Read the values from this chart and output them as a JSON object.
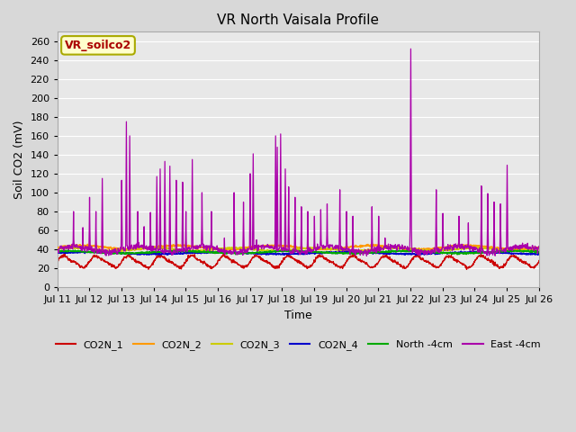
{
  "title": "VR North Vaisala Profile",
  "xlabel": "Time",
  "ylabel": "Soil CO2 (mV)",
  "ylim": [
    0,
    270
  ],
  "yticks": [
    0,
    20,
    40,
    60,
    80,
    100,
    120,
    140,
    160,
    180,
    200,
    220,
    240,
    260
  ],
  "xtick_labels": [
    "Jul 11",
    "Jul 12",
    "Jul 13",
    "Jul 14",
    "Jul 15",
    "Jul 16",
    "Jul 17",
    "Jul 18",
    "Jul 19",
    "Jul 20",
    "Jul 21",
    "Jul 22",
    "Jul 23",
    "Jul 24",
    "Jul 25",
    "Jul 26"
  ],
  "annotation_text": "VR_soilco2",
  "annotation_bg": "#ffffcc",
  "annotation_border": "#aaaa00",
  "annotation_color": "#aa0000",
  "series_colors": {
    "CO2N_1": "#cc0000",
    "CO2N_2": "#ff9900",
    "CO2N_3": "#cccc00",
    "CO2N_4": "#0000cc",
    "North -4cm": "#00aa00",
    "East -4cm": "#aa00aa"
  },
  "background_color": "#d8d8d8",
  "plot_bg": "#e8e8e8",
  "grid_color": "#ffffff",
  "figsize": [
    6.4,
    4.8
  ],
  "dpi": 100,
  "title_fontsize": 11,
  "axis_fontsize": 9,
  "tick_fontsize": 8
}
